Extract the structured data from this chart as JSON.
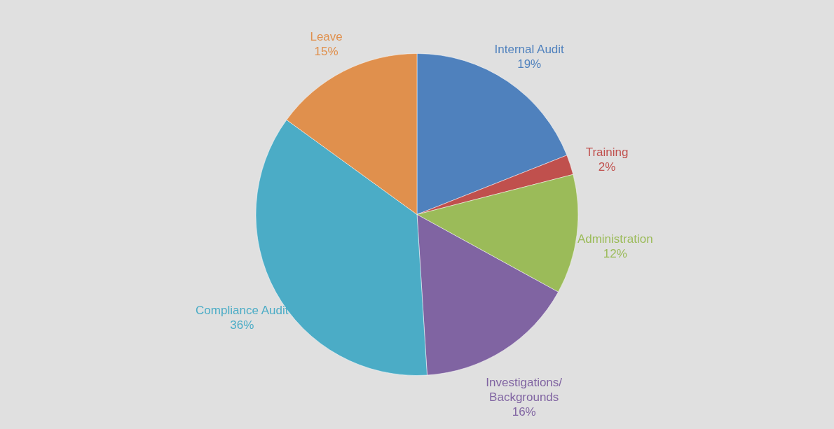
{
  "chart_data": {
    "type": "pie",
    "categories": [
      "Internal Audit",
      "Training",
      "Administration",
      "Investigations/ Backgrounds",
      "Compliance Audit",
      "Leave"
    ],
    "values": [
      19,
      2,
      12,
      16,
      36,
      15
    ],
    "value_labels": [
      "19%",
      "2%",
      "12%",
      "16%",
      "36%",
      "15%"
    ],
    "colors": [
      "#4f81bd",
      "#c0504d",
      "#9bbb59",
      "#8064a2",
      "#4bacc6",
      "#e0904d"
    ]
  }
}
